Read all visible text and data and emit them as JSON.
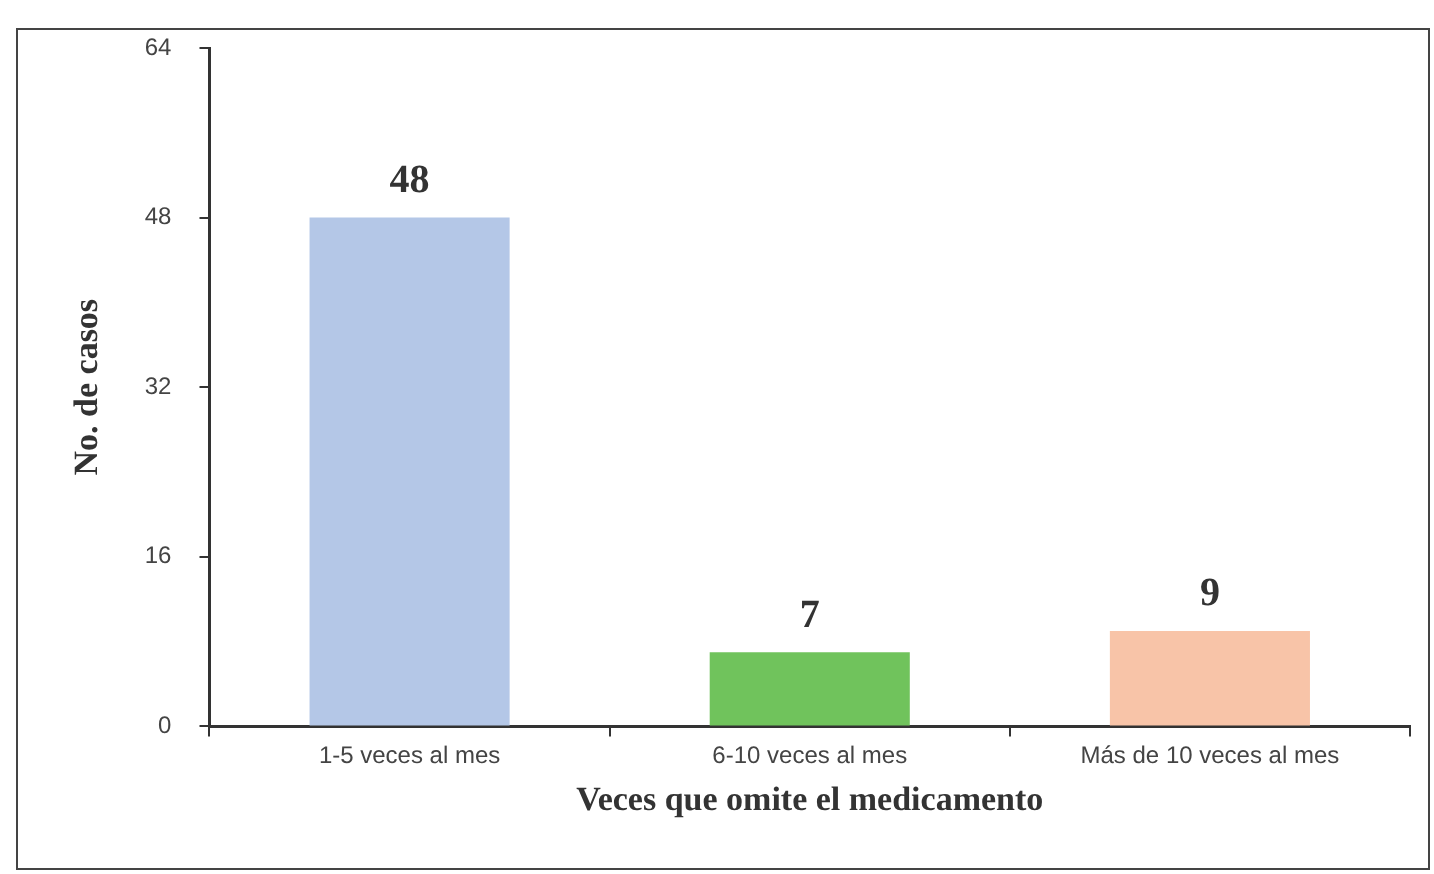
{
  "chart_data": {
    "type": "bar",
    "xlabel": "Veces que omite el medicamento",
    "ylabel": "No. de casos",
    "categories": [
      "1-5 veces al mes",
      "6-10 veces al mes",
      "Más de 10 veces al mes"
    ],
    "values": [
      48,
      7,
      9
    ],
    "colors": [
      "#b4c7e7",
      "#70c35c",
      "#f8c4a8"
    ],
    "ylim": [
      0,
      64
    ],
    "yticks": [
      0,
      16,
      32,
      48,
      64
    ],
    "grid": false,
    "legend": false,
    "data_labels": true
  }
}
